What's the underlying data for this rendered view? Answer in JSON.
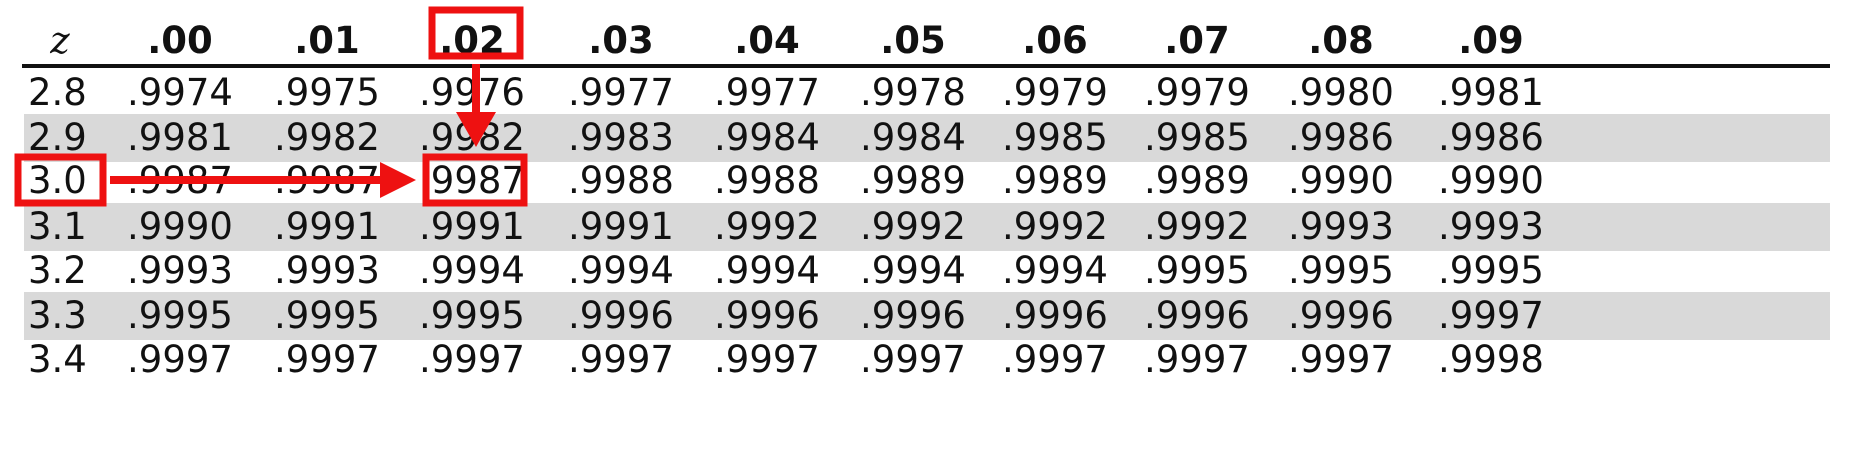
{
  "table": {
    "headers": [
      "z",
      ".00",
      ".01",
      ".02",
      ".03",
      ".04",
      ".05",
      ".06",
      ".07",
      ".08",
      ".09"
    ],
    "rows": [
      {
        "z": "2.8",
        "values": [
          ".9974",
          ".9975",
          ".9976",
          ".9977",
          ".9977",
          ".9978",
          ".9979",
          ".9979",
          ".9980",
          ".9981"
        ]
      },
      {
        "z": "2.9",
        "values": [
          ".9981",
          ".9982",
          ".9982",
          ".9983",
          ".9984",
          ".9984",
          ".9985",
          ".9985",
          ".9986",
          ".9986"
        ]
      },
      {
        "z": "3.0",
        "values": [
          ".9987",
          ".9987",
          ".9987",
          ".9988",
          ".9988",
          ".9989",
          ".9989",
          ".9989",
          ".9990",
          ".9990"
        ]
      },
      {
        "z": "3.1",
        "values": [
          ".9990",
          ".9991",
          ".9991",
          ".9991",
          ".9992",
          ".9992",
          ".9992",
          ".9992",
          ".9993",
          ".9993"
        ]
      },
      {
        "z": "3.2",
        "values": [
          ".9993",
          ".9993",
          ".9994",
          ".9994",
          ".9994",
          ".9994",
          ".9994",
          ".9995",
          ".9995",
          ".9995"
        ]
      },
      {
        "z": "3.3",
        "values": [
          ".9995",
          ".9995",
          ".9995",
          ".9996",
          ".9996",
          ".9996",
          ".9996",
          ".9996",
          ".9996",
          ".9997"
        ]
      },
      {
        "z": "3.4",
        "values": [
          ".9997",
          ".9997",
          ".9997",
          ".9997",
          ".9997",
          ".9997",
          ".9997",
          ".9997",
          ".9997",
          ".9998"
        ]
      }
    ]
  },
  "highlight": {
    "row_label": "3.0",
    "column_header": ".02",
    "cell_value": ".9987",
    "color": "#ee1111"
  },
  "colors": {
    "text": "#111111",
    "shade": "#d9d9d9",
    "rule": "#111111"
  }
}
